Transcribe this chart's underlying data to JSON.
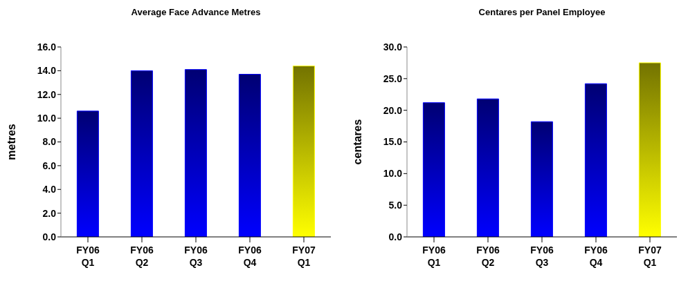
{
  "chart_data": [
    {
      "type": "bar",
      "title": "Average Face Advance Metres",
      "ylabel": "metres",
      "categories": [
        "FY06 Q1",
        "FY06 Q2",
        "FY06 Q3",
        "FY06 Q4",
        "FY07 Q1"
      ],
      "values": [
        10.6,
        14.0,
        14.1,
        13.7,
        14.4
      ],
      "colors": [
        "#0000ff",
        "#0000ff",
        "#0000ff",
        "#0000ff",
        "#ffff00"
      ],
      "ylim": [
        0,
        16
      ],
      "yticks": [
        {
          "value": 0,
          "label": "0.0"
        },
        {
          "value": 2,
          "label": "2.0"
        },
        {
          "value": 4,
          "label": "4.0"
        },
        {
          "value": 6,
          "label": "6.0"
        },
        {
          "value": 8,
          "label": "8.0"
        },
        {
          "value": 10,
          "label": "10.0"
        },
        {
          "value": 12,
          "label": "12.0"
        },
        {
          "value": 14,
          "label": "14.0"
        },
        {
          "value": 16,
          "label": "16.0"
        }
      ],
      "grid": false,
      "legend": false
    },
    {
      "type": "bar",
      "title": "Centares per Panel Employee",
      "ylabel": "centares",
      "categories": [
        "FY06 Q1",
        "FY06 Q2",
        "FY06 Q3",
        "FY06 Q4",
        "FY07 Q1"
      ],
      "values": [
        21.2,
        21.8,
        18.2,
        24.2,
        27.5
      ],
      "colors": [
        "#0000ff",
        "#0000ff",
        "#0000ff",
        "#0000ff",
        "#ffff00"
      ],
      "ylim": [
        0,
        30
      ],
      "yticks": [
        {
          "value": 0,
          "label": "0.0"
        },
        {
          "value": 5,
          "label": "5.0"
        },
        {
          "value": 10,
          "label": "10.0"
        },
        {
          "value": 15,
          "label": "15.0"
        },
        {
          "value": 20,
          "label": "20.0"
        },
        {
          "value": 25,
          "label": "25.0"
        },
        {
          "value": 30,
          "label": "30.0"
        }
      ],
      "grid": false,
      "legend": false
    }
  ]
}
